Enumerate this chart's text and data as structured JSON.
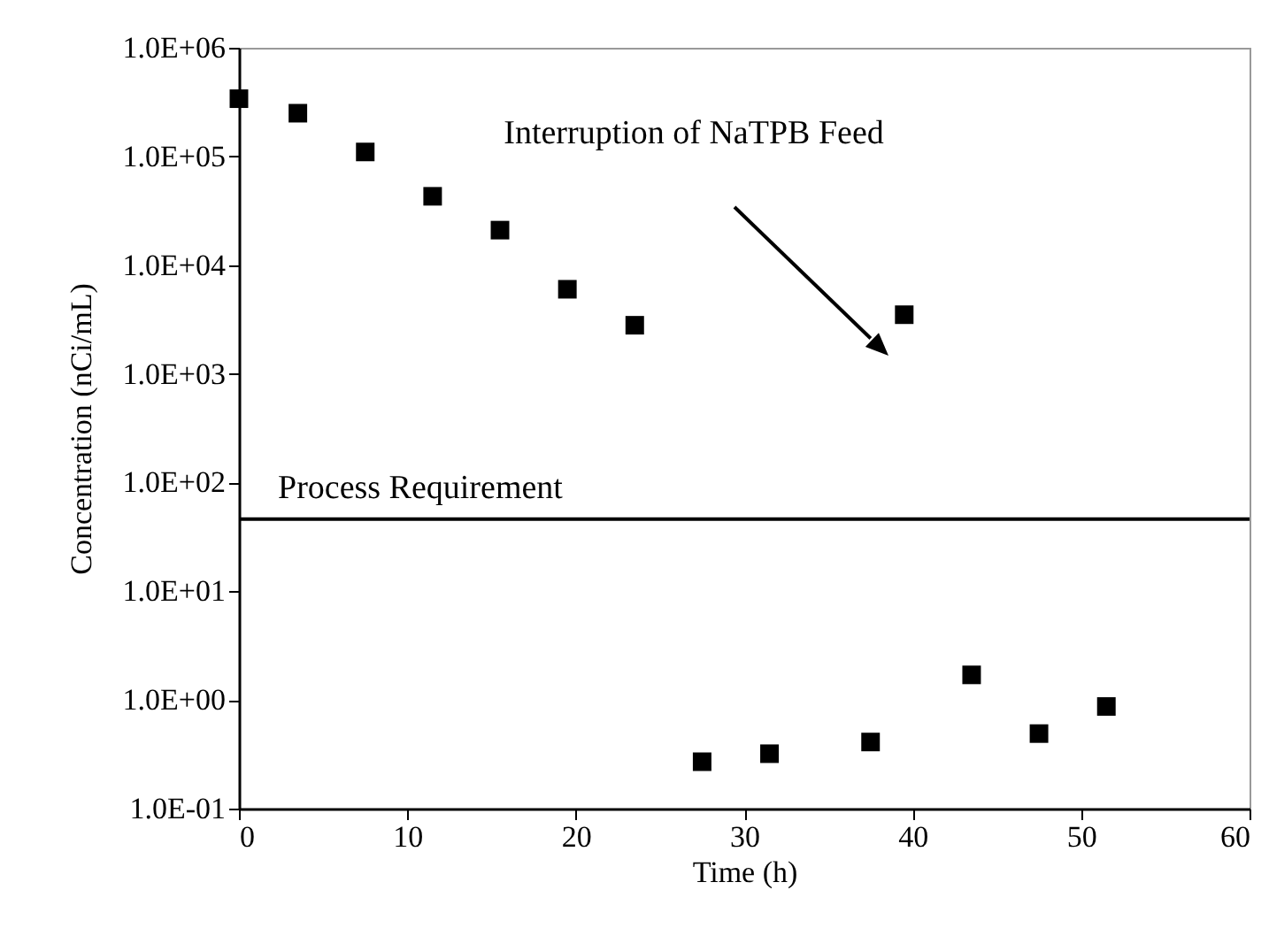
{
  "chart_data": {
    "type": "scatter",
    "xlabel": "Time (h)",
    "ylabel": "Concentration (nCi/mL)",
    "series": [
      {
        "color": "#000000",
        "x": [
          0,
          3.5,
          7.5,
          11.5,
          15.5,
          19.5,
          23.5,
          27.5,
          31.5,
          37.5,
          39.5,
          43.5,
          47.5,
          51.5
        ],
        "values": [
          340000,
          250000,
          110000,
          43000,
          21000,
          6000,
          2800,
          0.27,
          0.32,
          0.41,
          3500,
          1.7,
          0.49,
          0.87
        ]
      }
    ],
    "xlim": [
      0,
      60
    ],
    "xticks": [
      0,
      10,
      20,
      30,
      40,
      50,
      60
    ],
    "ylim": [
      0.1,
      1000000
    ],
    "yticks": [
      {
        "value": 0.1,
        "label": "1.0E-01"
      },
      {
        "value": 1,
        "label": "1.0E+00"
      },
      {
        "value": 10,
        "label": "1.0E+01"
      },
      {
        "value": 100,
        "label": "1.0E+02"
      },
      {
        "value": 1000,
        "label": "1.0E+03"
      },
      {
        "value": 10000,
        "label": "1.0E+04"
      },
      {
        "value": 100000,
        "label": "1.0E+05"
      },
      {
        "value": 1000000,
        "label": "1.0E+06"
      }
    ],
    "log": "y",
    "grid": false,
    "marker": "square",
    "ref_lines": [
      {
        "axis": "y",
        "value": 46,
        "label": "Process Requirement",
        "color": "#000000",
        "line_style": "solid"
      }
    ],
    "annotations": [
      "Interruption of NaTPB Feed"
    ]
  }
}
